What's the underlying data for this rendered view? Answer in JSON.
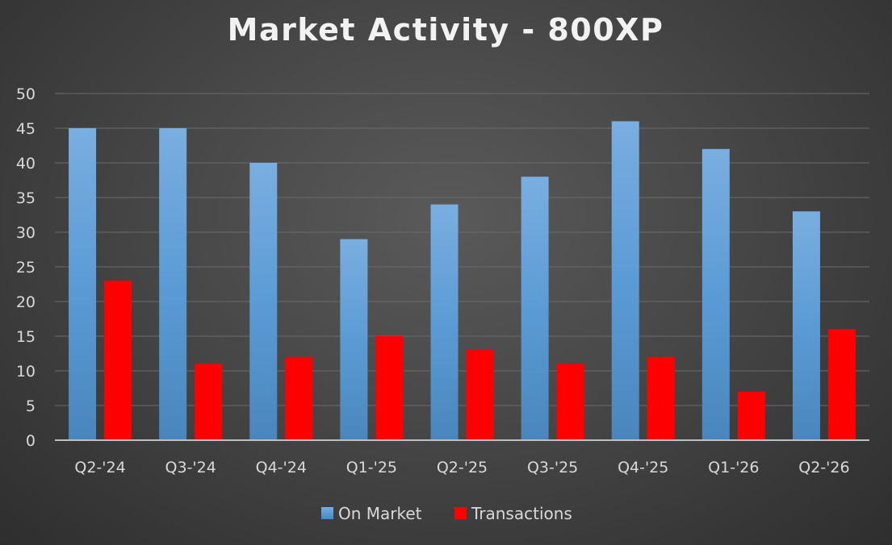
{
  "chart_data": {
    "type": "bar",
    "title": "Market Activity - 800XP",
    "xlabel": "",
    "ylabel": "",
    "categories": [
      "Q2-'24",
      "Q3-'24",
      "Q4-'24",
      "Q1-'25",
      "Q2-'25",
      "Q3-'25",
      "Q4-'25",
      "Q1-'26",
      "Q2-'26"
    ],
    "series": [
      {
        "name": "On Market",
        "color": "#5b9bd5",
        "values": [
          45,
          45,
          40,
          29,
          34,
          38,
          46,
          42,
          33
        ]
      },
      {
        "name": "Transactions",
        "color": "#ff0000",
        "values": [
          23,
          11,
          12,
          15,
          13,
          11,
          12,
          7,
          16
        ]
      }
    ],
    "ylim": [
      0,
      50
    ],
    "yticks": [
      0,
      5,
      10,
      15,
      20,
      25,
      30,
      35,
      40,
      45,
      50
    ],
    "grid": true,
    "legend_position": "bottom"
  },
  "colors": {
    "background": "#474747",
    "gridline": "#6b6b6b",
    "axis_line": "#bfbfbf",
    "text": "#d9d9d9",
    "title": "#f2f2f2"
  }
}
